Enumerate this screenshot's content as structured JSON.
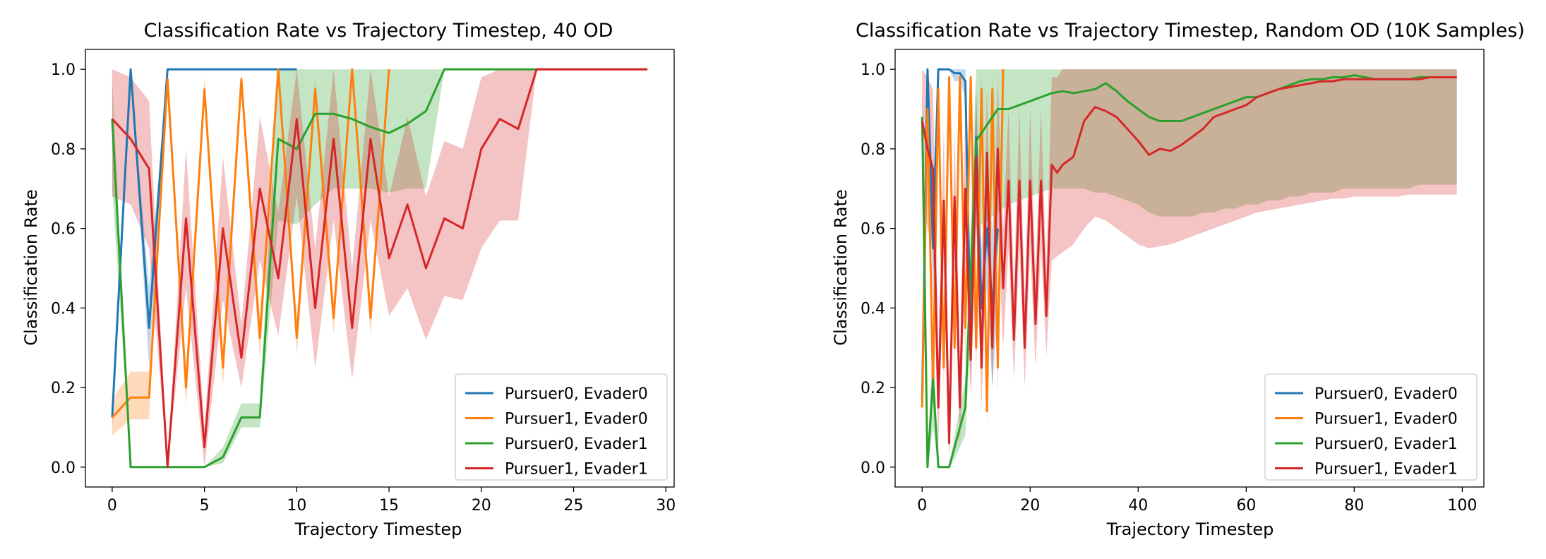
{
  "chart_data": [
    {
      "type": "line",
      "title": "Classification Rate vs Trajectory Timestep, 40 OD",
      "xlabel": "Trajectory Timestep",
      "ylabel": "Classification Rate",
      "xlim": [
        -1.45,
        30.45
      ],
      "ylim": [
        -0.05,
        1.05
      ],
      "xticks": [
        0,
        5,
        10,
        15,
        20,
        25,
        30
      ],
      "yticks": [
        0.0,
        0.2,
        0.4,
        0.6,
        0.8,
        1.0
      ],
      "grid": false,
      "legend_position": "lower-right",
      "series": [
        {
          "name": "Pursuer0, Evader0",
          "color": "#1f77b4",
          "x": [
            0,
            1,
            2,
            3,
            4,
            5,
            6,
            7,
            8,
            9,
            10
          ],
          "y": [
            0.125,
            1.0,
            0.35,
            1.0,
            1.0,
            1.0,
            1.0,
            1.0,
            1.0,
            1.0,
            1.0
          ],
          "lower": [
            0.09,
            1.0,
            0.25,
            1.0,
            1.0,
            1.0,
            1.0,
            1.0,
            1.0,
            1.0,
            1.0
          ],
          "upper": [
            0.16,
            1.0,
            0.45,
            1.0,
            1.0,
            1.0,
            1.0,
            1.0,
            1.0,
            1.0,
            1.0
          ]
        },
        {
          "name": "Pursuer1, Evader0",
          "color": "#ff7f0e",
          "x": [
            0,
            1,
            2,
            3,
            4,
            5,
            6,
            7,
            8,
            9,
            10,
            11,
            12,
            13,
            14,
            15
          ],
          "y": [
            0.125,
            0.175,
            0.175,
            0.975,
            0.2,
            0.95,
            0.25,
            0.975,
            0.325,
            1.0,
            0.325,
            0.95,
            0.375,
            1.0,
            0.375,
            1.0
          ],
          "lower": [
            0.08,
            0.12,
            0.12,
            0.95,
            0.15,
            0.92,
            0.2,
            0.95,
            0.27,
            1.0,
            0.28,
            0.92,
            0.33,
            1.0,
            0.33,
            1.0
          ],
          "upper": [
            0.17,
            0.24,
            0.24,
            1.0,
            0.25,
            0.98,
            0.3,
            1.0,
            0.38,
            1.0,
            0.38,
            0.98,
            0.42,
            1.0,
            0.42,
            1.0
          ]
        },
        {
          "name": "Pursuer0, Evader1",
          "color": "#2ca02c",
          "x": [
            0,
            1,
            2,
            3,
            4,
            5,
            6,
            7,
            8,
            9,
            10,
            11,
            12,
            13,
            14,
            15,
            16,
            17,
            18,
            19,
            20,
            21,
            22,
            23,
            24,
            25,
            26,
            27,
            28,
            29
          ],
          "y": [
            0.875,
            0.0,
            0.0,
            0.0,
            0.0,
            0.0,
            0.025,
            0.125,
            0.125,
            0.825,
            0.8,
            0.888,
            0.888,
            0.875,
            0.855,
            0.84,
            0.863,
            0.895,
            1.0,
            1.0,
            1.0,
            1.0,
            1.0,
            1.0,
            1.0,
            1.0,
            1.0,
            1.0,
            1.0,
            1.0
          ],
          "lower": [
            0.7,
            0.0,
            0.0,
            0.0,
            0.0,
            0.0,
            0.01,
            0.1,
            0.1,
            0.62,
            0.61,
            0.66,
            0.7,
            0.7,
            0.7,
            0.69,
            0.7,
            0.7,
            1.0,
            1.0,
            1.0,
            1.0,
            1.0,
            1.0,
            1.0,
            1.0,
            1.0,
            1.0,
            1.0,
            1.0
          ],
          "upper": [
            0.98,
            0.0,
            0.0,
            0.0,
            0.0,
            0.0,
            0.05,
            0.16,
            0.16,
            1.0,
            1.0,
            1.0,
            1.0,
            1.0,
            1.0,
            1.0,
            1.0,
            1.0,
            1.0,
            1.0,
            1.0,
            1.0,
            1.0,
            1.0,
            1.0,
            1.0,
            1.0,
            1.0,
            1.0,
            1.0
          ]
        },
        {
          "name": "Pursuer1, Evader1",
          "color": "#d62728",
          "x": [
            0,
            1,
            2,
            3,
            4,
            5,
            6,
            7,
            8,
            9,
            10,
            11,
            12,
            13,
            14,
            15,
            16,
            17,
            18,
            19,
            20,
            21,
            22,
            23,
            24,
            25,
            26,
            27,
            28,
            29
          ],
          "y": [
            0.875,
            0.825,
            0.75,
            0.0,
            0.625,
            0.05,
            0.6,
            0.275,
            0.7,
            0.475,
            0.875,
            0.4,
            0.825,
            0.35,
            0.825,
            0.525,
            0.66,
            0.5,
            0.625,
            0.6,
            0.8,
            0.875,
            0.85,
            1.0,
            1.0,
            1.0,
            1.0,
            1.0,
            1.0,
            1.0
          ],
          "lower": [
            0.68,
            0.66,
            0.55,
            0.0,
            0.45,
            0.0,
            0.42,
            0.2,
            0.52,
            0.33,
            0.68,
            0.25,
            0.62,
            0.22,
            0.62,
            0.38,
            0.45,
            0.32,
            0.43,
            0.42,
            0.55,
            0.62,
            0.62,
            1.0,
            1.0,
            1.0,
            1.0,
            1.0,
            1.0,
            1.0
          ],
          "upper": [
            1.0,
            0.98,
            0.92,
            0.0,
            0.8,
            0.1,
            0.78,
            0.36,
            0.88,
            0.64,
            1.0,
            0.55,
            1.0,
            0.5,
            1.0,
            0.68,
            0.88,
            0.68,
            0.82,
            0.8,
            0.98,
            1.0,
            1.0,
            1.0,
            1.0,
            1.0,
            1.0,
            1.0,
            1.0,
            1.0
          ]
        }
      ]
    },
    {
      "type": "line",
      "title": "Classification Rate vs Trajectory Timestep, Random OD (10K Samples)",
      "xlabel": "Trajectory Timestep",
      "ylabel": "Classification Rate",
      "xlim": [
        -5,
        104
      ],
      "ylim": [
        -0.05,
        1.05
      ],
      "xticks": [
        0,
        20,
        40,
        60,
        80,
        100
      ],
      "yticks": [
        0.0,
        0.2,
        0.4,
        0.6,
        0.8,
        1.0
      ],
      "grid": false,
      "legend_position": "lower-right",
      "series": [
        {
          "name": "Pursuer0, Evader0",
          "color": "#1f77b4",
          "x": [
            0,
            1,
            2,
            3,
            4,
            5,
            6,
            7,
            8,
            9,
            10,
            11,
            12,
            13,
            14
          ],
          "y": [
            0.17,
            1.0,
            0.55,
            1.0,
            1.0,
            1.0,
            0.99,
            0.99,
            0.97,
            0.3,
            0.83,
            0.4,
            0.6,
            0.4,
            0.6
          ],
          "lower": [
            0.12,
            1.0,
            0.4,
            1.0,
            1.0,
            1.0,
            0.97,
            0.97,
            0.93,
            0.18,
            0.7,
            0.3,
            0.45,
            0.2,
            0.4
          ],
          "upper": [
            0.22,
            1.0,
            0.7,
            1.0,
            1.0,
            1.0,
            1.0,
            1.0,
            1.0,
            0.45,
            0.95,
            0.55,
            0.75,
            0.6,
            0.8
          ]
        },
        {
          "name": "Pursuer1, Evader0",
          "color": "#ff7f0e",
          "x": [
            0,
            1,
            2,
            3,
            4,
            5,
            6,
            7,
            8,
            9,
            10,
            11,
            12,
            13,
            14,
            15
          ],
          "y": [
            0.15,
            0.9,
            0.2,
            0.95,
            0.25,
            0.98,
            0.3,
            0.98,
            0.35,
            0.98,
            0.3,
            0.95,
            0.14,
            0.95,
            0.25,
            1.0
          ],
          "lower": [
            0.1,
            0.8,
            0.15,
            0.85,
            0.18,
            0.9,
            0.22,
            0.9,
            0.25,
            0.9,
            0.22,
            0.85,
            0.1,
            0.85,
            0.18,
            1.0
          ],
          "upper": [
            0.2,
            0.98,
            0.25,
            1.0,
            0.32,
            1.0,
            0.38,
            1.0,
            0.45,
            1.0,
            0.38,
            1.0,
            0.2,
            1.0,
            0.32,
            1.0
          ]
        },
        {
          "name": "Pursuer0, Evader1",
          "color": "#2ca02c",
          "x": [
            0,
            1,
            2,
            3,
            4,
            5,
            6,
            8,
            10,
            12,
            14,
            16,
            18,
            20,
            22,
            24,
            26,
            28,
            30,
            32,
            34,
            36,
            38,
            40,
            42,
            44,
            46,
            48,
            50,
            52,
            54,
            56,
            58,
            60,
            62,
            64,
            66,
            68,
            70,
            72,
            74,
            76,
            78,
            80,
            82,
            84,
            86,
            88,
            90,
            92,
            94,
            96,
            98,
            99
          ],
          "y": [
            0.88,
            0.0,
            0.22,
            0.0,
            0.0,
            0.0,
            0.05,
            0.15,
            0.82,
            0.86,
            0.9,
            0.9,
            0.91,
            0.92,
            0.93,
            0.94,
            0.945,
            0.94,
            0.945,
            0.95,
            0.965,
            0.945,
            0.92,
            0.9,
            0.88,
            0.87,
            0.87,
            0.87,
            0.88,
            0.89,
            0.9,
            0.91,
            0.92,
            0.93,
            0.93,
            0.94,
            0.95,
            0.96,
            0.97,
            0.975,
            0.975,
            0.98,
            0.98,
            0.985,
            0.98,
            0.975,
            0.975,
            0.975,
            0.975,
            0.98,
            0.98,
            0.98,
            0.98,
            0.98
          ],
          "lower": [
            0.7,
            0.0,
            0.1,
            0.0,
            0.0,
            0.0,
            0.02,
            0.08,
            0.6,
            0.62,
            0.64,
            0.66,
            0.67,
            0.68,
            0.69,
            0.7,
            0.7,
            0.7,
            0.7,
            0.69,
            0.69,
            0.68,
            0.67,
            0.66,
            0.64,
            0.63,
            0.63,
            0.63,
            0.63,
            0.64,
            0.64,
            0.65,
            0.65,
            0.66,
            0.66,
            0.67,
            0.67,
            0.68,
            0.68,
            0.69,
            0.69,
            0.69,
            0.7,
            0.7,
            0.7,
            0.7,
            0.7,
            0.7,
            0.7,
            0.71,
            0.71,
            0.71,
            0.71,
            0.71
          ],
          "upper": [
            0.98,
            0.0,
            0.35,
            0.0,
            0.0,
            0.0,
            0.08,
            0.22,
            1.0,
            1.0,
            1.0,
            1.0,
            1.0,
            1.0,
            1.0,
            1.0,
            1.0,
            1.0,
            1.0,
            1.0,
            1.0,
            1.0,
            1.0,
            1.0,
            1.0,
            1.0,
            1.0,
            1.0,
            1.0,
            1.0,
            1.0,
            1.0,
            1.0,
            1.0,
            1.0,
            1.0,
            1.0,
            1.0,
            1.0,
            1.0,
            1.0,
            1.0,
            1.0,
            1.0,
            1.0,
            1.0,
            1.0,
            1.0,
            1.0,
            1.0,
            1.0,
            1.0,
            1.0,
            1.0
          ]
        },
        {
          "name": "Pursuer1, Evader1",
          "color": "#d62728",
          "x": [
            0,
            1,
            2,
            3,
            4,
            5,
            6,
            7,
            8,
            9,
            10,
            11,
            12,
            13,
            14,
            15,
            16,
            17,
            18,
            19,
            20,
            21,
            22,
            23,
            24,
            25,
            26,
            28,
            30,
            32,
            34,
            36,
            38,
            40,
            42,
            44,
            46,
            48,
            50,
            52,
            54,
            56,
            58,
            60,
            62,
            64,
            66,
            68,
            70,
            72,
            74,
            76,
            78,
            80,
            82,
            84,
            86,
            88,
            90,
            92,
            94,
            96,
            98,
            99
          ],
          "y": [
            0.87,
            0.8,
            0.75,
            0.15,
            0.67,
            0.06,
            0.68,
            0.15,
            0.7,
            0.27,
            0.78,
            0.25,
            0.79,
            0.3,
            0.8,
            0.45,
            0.72,
            0.32,
            0.72,
            0.3,
            0.72,
            0.36,
            0.72,
            0.38,
            0.76,
            0.74,
            0.76,
            0.78,
            0.87,
            0.905,
            0.895,
            0.88,
            0.85,
            0.82,
            0.785,
            0.8,
            0.795,
            0.81,
            0.83,
            0.85,
            0.88,
            0.89,
            0.9,
            0.91,
            0.93,
            0.94,
            0.95,
            0.955,
            0.96,
            0.965,
            0.97,
            0.97,
            0.975,
            0.975,
            0.975,
            0.975,
            0.975,
            0.975,
            0.975,
            0.975,
            0.98,
            0.98,
            0.98,
            0.98
          ],
          "lower": [
            0.7,
            0.6,
            0.55,
            0.05,
            0.5,
            0.02,
            0.5,
            0.05,
            0.52,
            0.18,
            0.6,
            0.15,
            0.6,
            0.2,
            0.6,
            0.3,
            0.55,
            0.22,
            0.55,
            0.2,
            0.55,
            0.25,
            0.55,
            0.28,
            0.52,
            0.53,
            0.54,
            0.56,
            0.6,
            0.63,
            0.62,
            0.6,
            0.58,
            0.56,
            0.55,
            0.555,
            0.56,
            0.57,
            0.58,
            0.59,
            0.6,
            0.61,
            0.62,
            0.63,
            0.64,
            0.645,
            0.65,
            0.655,
            0.66,
            0.665,
            0.67,
            0.675,
            0.675,
            0.68,
            0.68,
            0.68,
            0.68,
            0.68,
            0.685,
            0.685,
            0.685,
            0.685,
            0.685,
            0.685
          ],
          "upper": [
            1.0,
            0.98,
            0.95,
            0.28,
            0.85,
            0.12,
            0.85,
            0.26,
            0.9,
            0.38,
            0.95,
            0.36,
            0.95,
            0.42,
            0.98,
            0.6,
            0.9,
            0.45,
            0.9,
            0.42,
            0.9,
            0.48,
            0.9,
            0.5,
            0.98,
            0.98,
            1.0,
            1.0,
            1.0,
            1.0,
            1.0,
            1.0,
            1.0,
            1.0,
            1.0,
            1.0,
            1.0,
            1.0,
            1.0,
            1.0,
            1.0,
            1.0,
            1.0,
            1.0,
            1.0,
            1.0,
            1.0,
            1.0,
            1.0,
            1.0,
            1.0,
            1.0,
            1.0,
            1.0,
            1.0,
            1.0,
            1.0,
            1.0,
            1.0,
            1.0,
            1.0,
            1.0,
            1.0,
            1.0
          ]
        }
      ]
    }
  ]
}
